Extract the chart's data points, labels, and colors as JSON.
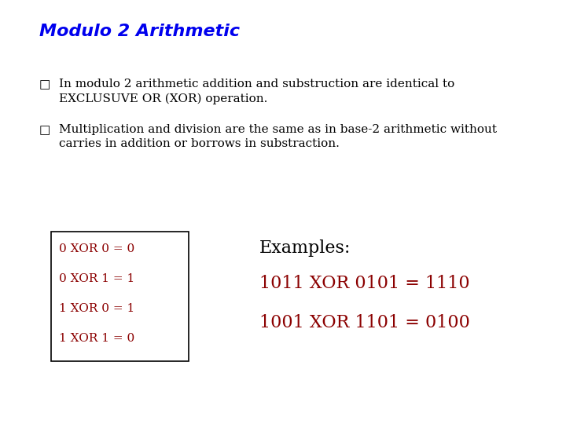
{
  "title": "Modulo 2 Arithmetic",
  "title_color": "#0000EE",
  "title_fontsize": 16,
  "background_color": "#FFFFFF",
  "bullet_color": "#000000",
  "bullet1_line1": "In modulo 2 arithmetic addition and substruction are identical to",
  "bullet1_line2": "EXCLUSUVE OR (XOR) operation.",
  "bullet2_line1": "Multiplication and division are the same as in base-2 arithmetic without",
  "bullet2_line2": "carries in addition or borrows in substraction.",
  "xor_table": [
    "0 XOR 0 = 0",
    "0 XOR 1 = 1",
    "1 XOR 0 = 1",
    "1 XOR 1 = 0"
  ],
  "xor_table_color": "#8B0000",
  "examples_label": "Examples:",
  "examples_label_color": "#000000",
  "example1": "1011 XOR 0101 = 1110",
  "example2": "1001 XOR 1101 = 0100",
  "example_color": "#8B0000",
  "text_fontsize": 11,
  "xor_fontsize": 11,
  "examples_label_fontsize": 16,
  "example_fontsize": 16
}
